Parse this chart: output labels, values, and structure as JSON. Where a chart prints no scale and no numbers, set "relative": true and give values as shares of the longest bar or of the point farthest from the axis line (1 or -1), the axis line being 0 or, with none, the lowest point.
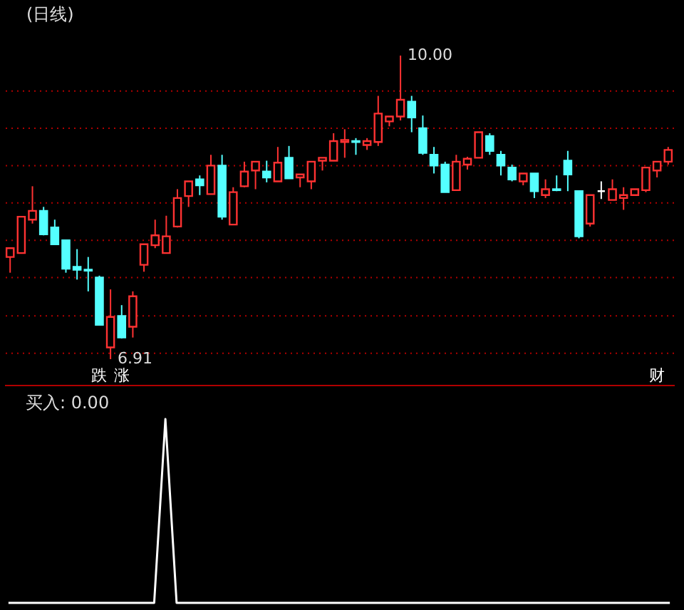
{
  "chart_data": [
    {
      "type": "candlestick",
      "title": "(日线)",
      "tick_labels": false,
      "grid": "y",
      "categories": [
        null,
        null,
        null,
        null,
        null,
        null,
        null,
        null,
        null,
        null,
        null,
        null,
        null,
        null,
        null,
        null,
        null,
        null,
        null,
        null,
        null,
        null,
        null,
        null,
        null,
        null,
        null,
        null,
        null,
        null,
        null,
        null,
        null,
        null,
        null,
        null,
        null,
        null,
        null,
        null,
        null,
        null,
        null,
        null,
        null,
        null,
        null,
        null,
        null,
        null,
        null,
        null,
        null,
        null,
        null,
        null,
        null,
        null,
        null,
        null
      ],
      "yticks": [
        {
          "value": 6.97,
          "label": null
        },
        {
          "value": 7.35,
          "label": null
        },
        {
          "value": 7.74,
          "label": null
        },
        {
          "value": 8.12,
          "label": null
        },
        {
          "value": 8.5,
          "label": null
        },
        {
          "value": 8.88,
          "label": null
        },
        {
          "value": 9.26,
          "label": null
        },
        {
          "value": 9.64,
          "label": null
        }
      ],
      "ohlc": [
        [
          7.95,
          8.04,
          7.79,
          8.04
        ],
        [
          7.99,
          8.36,
          7.99,
          8.36
        ],
        [
          8.33,
          8.67,
          8.29,
          8.42
        ],
        [
          8.42,
          8.46,
          8.17,
          8.18
        ],
        [
          8.25,
          8.33,
          8.08,
          8.08
        ],
        [
          8.12,
          8.12,
          7.79,
          7.83
        ],
        [
          7.85,
          8.03,
          7.72,
          7.82
        ],
        [
          7.82,
          7.95,
          7.6,
          7.81
        ],
        [
          7.74,
          7.76,
          7.26,
          7.26
        ],
        [
          7.03,
          7.62,
          6.91,
          7.34
        ],
        [
          7.35,
          7.46,
          7.12,
          7.13
        ],
        [
          7.24,
          7.6,
          7.13,
          7.55
        ],
        [
          7.87,
          8.08,
          7.8,
          8.08
        ],
        [
          8.07,
          8.33,
          8.04,
          8.17
        ],
        [
          7.99,
          8.37,
          7.99,
          8.16
        ],
        [
          8.26,
          8.64,
          8.25,
          8.55
        ],
        [
          8.57,
          8.72,
          8.46,
          8.72
        ],
        [
          8.74,
          8.78,
          8.58,
          8.68
        ],
        [
          8.59,
          8.99,
          8.59,
          8.88
        ],
        [
          8.88,
          8.99,
          8.33,
          8.36
        ],
        [
          8.28,
          8.66,
          8.28,
          8.61
        ],
        [
          8.67,
          8.92,
          8.66,
          8.82
        ],
        [
          8.83,
          8.92,
          8.64,
          8.92
        ],
        [
          8.82,
          8.93,
          8.71,
          8.76
        ],
        [
          8.72,
          9.07,
          8.72,
          8.91
        ],
        [
          8.96,
          9.08,
          8.75,
          8.75
        ],
        [
          8.76,
          8.79,
          8.66,
          8.79
        ],
        [
          8.72,
          8.92,
          8.64,
          8.92
        ],
        [
          8.93,
          8.96,
          8.83,
          8.96
        ],
        [
          8.93,
          9.21,
          8.93,
          9.13
        ],
        [
          9.12,
          9.25,
          8.96,
          9.14
        ],
        [
          9.13,
          9.16,
          8.99,
          9.12
        ],
        [
          9.09,
          9.16,
          9.04,
          9.13
        ],
        [
          9.12,
          9.59,
          9.08,
          9.41
        ],
        [
          9.33,
          9.38,
          9.28,
          9.38
        ],
        [
          9.38,
          10.0,
          9.34,
          9.55
        ],
        [
          9.53,
          9.59,
          9.22,
          9.37
        ],
        [
          9.26,
          9.39,
          8.99,
          9.01
        ],
        [
          8.99,
          9.07,
          8.8,
          8.88
        ],
        [
          8.89,
          8.92,
          8.61,
          8.61
        ],
        [
          8.63,
          8.99,
          8.63,
          8.92
        ],
        [
          8.89,
          8.97,
          8.84,
          8.95
        ],
        [
          8.96,
          9.22,
          8.96,
          9.22
        ],
        [
          9.18,
          9.21,
          8.99,
          9.03
        ],
        [
          8.99,
          9.03,
          8.78,
          8.88
        ],
        [
          8.86,
          8.89,
          8.72,
          8.74
        ],
        [
          8.72,
          8.8,
          8.68,
          8.8
        ],
        [
          8.8,
          8.8,
          8.55,
          8.62
        ],
        [
          8.58,
          8.74,
          8.55,
          8.64
        ],
        [
          8.64,
          8.78,
          8.62,
          8.63
        ],
        [
          8.93,
          9.03,
          8.62,
          8.79
        ],
        [
          8.62,
          8.62,
          8.14,
          8.16
        ],
        [
          8.29,
          8.58,
          8.26,
          8.58
        ],
        [
          8.62,
          8.72,
          8.54,
          8.62
        ],
        [
          8.53,
          8.74,
          8.53,
          8.64
        ],
        [
          8.55,
          8.66,
          8.43,
          8.58
        ],
        [
          8.58,
          8.64,
          8.58,
          8.64
        ],
        [
          8.63,
          8.86,
          8.61,
          8.86
        ],
        [
          8.83,
          8.92,
          8.76,
          8.92
        ],
        [
          8.92,
          9.07,
          8.89,
          9.04
        ]
      ],
      "colors": [
        "#ff3232",
        "#ff3232",
        "#ff3232",
        "#54ffff",
        "#54ffff",
        "#54ffff",
        "#54ffff",
        "#54ffff",
        "#54ffff",
        "#ff3232",
        "#54ffff",
        "#ff3232",
        "#ff3232",
        "#ff3232",
        "#ff3232",
        "#ff3232",
        "#ff3232",
        "#54ffff",
        "#ff3232",
        "#54ffff",
        "#ff3232",
        "#ff3232",
        "#ff3232",
        "#54ffff",
        "#ff3232",
        "#54ffff",
        "#ff3232",
        "#ff3232",
        "#ff3232",
        "#ff3232",
        "#ff3232",
        "#54ffff",
        "#ff3232",
        "#ff3232",
        "#ff3232",
        "#ff3232",
        "#54ffff",
        "#54ffff",
        "#54ffff",
        "#54ffff",
        "#ff3232",
        "#ff3232",
        "#ff3232",
        "#54ffff",
        "#54ffff",
        "#54ffff",
        "#ff3232",
        "#54ffff",
        "#ff3232",
        "#54ffff",
        "#54ffff",
        "#54ffff",
        "#ff3232",
        "#ffffff",
        "#ff3232",
        "#ff3232",
        "#ff3232",
        "#ff3232",
        "#ff3232",
        "#ff3232"
      ],
      "annotations": [
        "10.00",
        "6.91",
        "跌",
        "涨",
        "财"
      ]
    },
    {
      "type": "line",
      "title": "买入: 0.00",
      "relative": true,
      "tick_labels": false,
      "categories": [
        null,
        null,
        null,
        null,
        null,
        null,
        null,
        null,
        null,
        null,
        null,
        null,
        null,
        null,
        null,
        null,
        null,
        null,
        null,
        null,
        null,
        null,
        null,
        null,
        null,
        null,
        null,
        null,
        null,
        null,
        null,
        null,
        null,
        null,
        null,
        null,
        null,
        null,
        null,
        null,
        null,
        null,
        null,
        null,
        null,
        null,
        null,
        null,
        null,
        null,
        null,
        null,
        null,
        null,
        null,
        null,
        null,
        null,
        null,
        null
      ],
      "series": [
        {
          "color": "#ffffff",
          "values": [
            0,
            0,
            0,
            0,
            0,
            0,
            0,
            0,
            0,
            0,
            0,
            0,
            0,
            0,
            1,
            0,
            0,
            0,
            0,
            0,
            0,
            0,
            0,
            0,
            0,
            0,
            0,
            0,
            0,
            0,
            0,
            0,
            0,
            0,
            0,
            0,
            0,
            0,
            0,
            0,
            0,
            0,
            0,
            0,
            0,
            0,
            0,
            0,
            0,
            0,
            0,
            0,
            0,
            0,
            0,
            0,
            0,
            0,
            0,
            0
          ]
        }
      ]
    }
  ]
}
